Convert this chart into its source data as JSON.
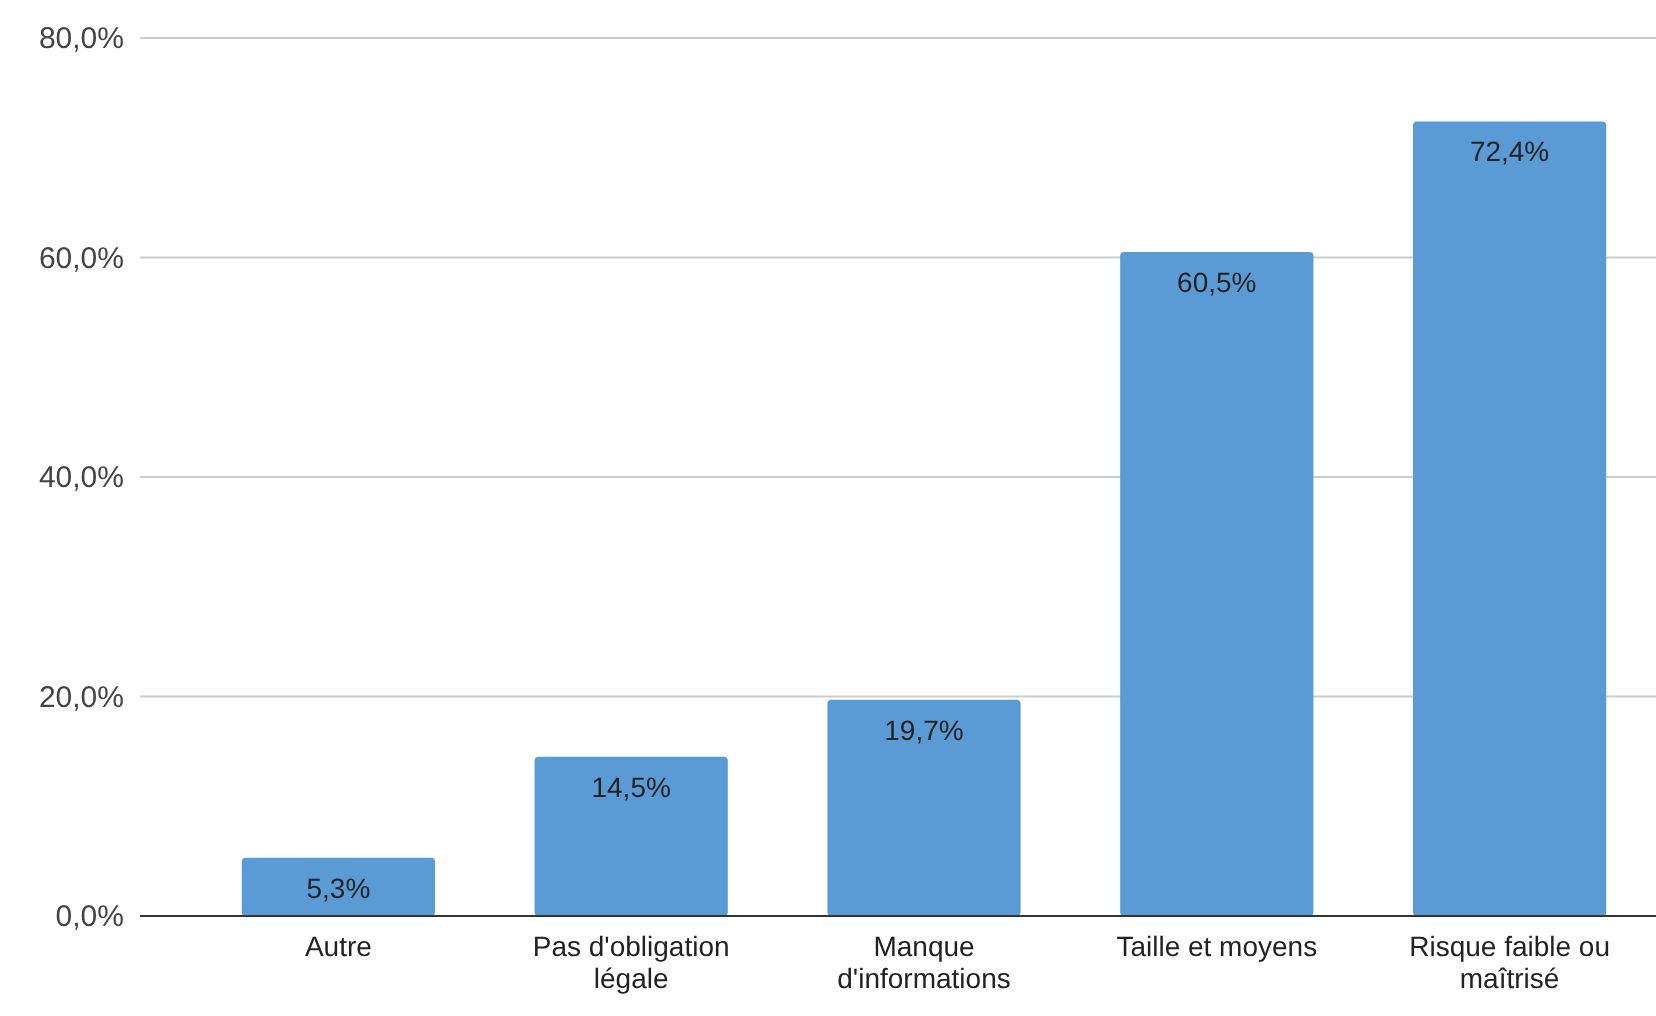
{
  "chart_data": {
    "type": "bar",
    "categories": [
      "Autre",
      "Pas d'obligation légale",
      "Manque d'informations",
      "Taille et moyens",
      "Risque faible ou maîtrisé"
    ],
    "values": [
      5.3,
      14.5,
      19.7,
      60.5,
      72.4
    ],
    "value_labels": [
      "5,3%",
      "14,5%",
      "19,7%",
      "60,5%",
      "72,4%"
    ],
    "color": "#5b9bd5",
    "ylim": [
      0,
      80
    ],
    "yticks": [
      {
        "value": 0,
        "label": "0,0%"
      },
      {
        "value": 20,
        "label": "20,0%"
      },
      {
        "value": 40,
        "label": "40,0%"
      },
      {
        "value": 60,
        "label": "60,0%"
      },
      {
        "value": 80,
        "label": "80,0%"
      }
    ],
    "grid": "y"
  }
}
